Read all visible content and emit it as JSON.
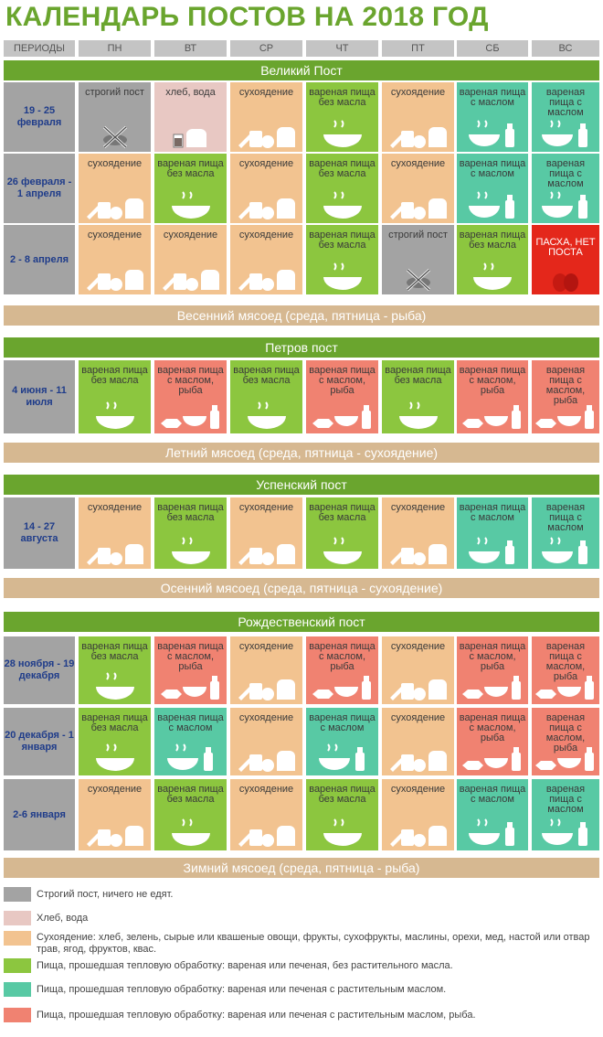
{
  "title": "КАЛЕНДАРЬ ПОСТОВ НА 2018 ГОД",
  "columns": [
    "ПЕРИОДЫ",
    "ПН",
    "ВТ",
    "СР",
    "ЧТ",
    "ПТ",
    "СБ",
    "ВС"
  ],
  "colors": {
    "strict": "#a3a3a3",
    "bread": "#e8c8c3",
    "dry": "#f2c390",
    "boiled_no_oil": "#8cc63f",
    "boiled_oil": "#58c9a4",
    "boiled_oil_fish": "#f08271",
    "easter": "#e4271b",
    "band": "#6aa52e",
    "meat_band": "#d6b891"
  },
  "labels": {
    "strict": "строгий пост",
    "bread": "хлеб, вода",
    "dry": "сухоядение",
    "boiled_no_oil": "вареная пища без масла",
    "boiled_oil": "вареная пища с маслом",
    "boiled_oil_fish": "вареная пища с маслом, рыба",
    "easter": "ПАСХА, НЕТ ПОСТА"
  },
  "sections": [
    {
      "name": "Великий Пост",
      "rows": [
        {
          "period": "19 - 25 февраля",
          "days": [
            "strict",
            "bread",
            "dry",
            "boiled_no_oil",
            "dry",
            "boiled_oil",
            "boiled_oil"
          ]
        },
        {
          "period": "26 февраля - 1 апреля",
          "days": [
            "dry",
            "boiled_no_oil",
            "dry",
            "boiled_no_oil",
            "dry",
            "boiled_oil",
            "boiled_oil"
          ]
        },
        {
          "period": "2 - 8 апреля",
          "days": [
            "dry",
            "dry",
            "dry",
            "boiled_no_oil",
            "strict",
            "boiled_no_oil",
            "easter"
          ]
        }
      ],
      "meat": "Весенний мясоед (среда, пятница - рыба)"
    },
    {
      "name": "Петров пост",
      "rows": [
        {
          "period": "4 июня - 11 июля",
          "days": [
            "boiled_no_oil",
            "boiled_oil_fish",
            "boiled_no_oil",
            "boiled_oil_fish",
            "boiled_no_oil",
            "boiled_oil_fish",
            "boiled_oil_fish"
          ]
        }
      ],
      "meat": "Летний мясоед (среда, пятница - сухоядение)"
    },
    {
      "name": "Успенский пост",
      "rows": [
        {
          "period": "14 - 27 августа",
          "days": [
            "dry",
            "boiled_no_oil",
            "dry",
            "boiled_no_oil",
            "dry",
            "boiled_oil",
            "boiled_oil"
          ]
        }
      ],
      "meat": "Осенний мясоед (среда, пятница - сухоядение)"
    },
    {
      "name": "Рождественский пост",
      "rows": [
        {
          "period": "28 ноября - 19 декабря",
          "days": [
            "boiled_no_oil",
            "boiled_oil_fish",
            "dry",
            "boiled_oil_fish",
            "dry",
            "boiled_oil_fish",
            "boiled_oil_fish"
          ]
        },
        {
          "period": "20 декабря - 1 января",
          "days": [
            "boiled_no_oil",
            "boiled_oil",
            "dry",
            "boiled_oil",
            "dry",
            "boiled_oil_fish",
            "boiled_oil_fish"
          ]
        },
        {
          "period": "2-6 января",
          "days": [
            "dry",
            "boiled_no_oil",
            "dry",
            "boiled_no_oil",
            "dry",
            "boiled_oil",
            "boiled_oil"
          ]
        }
      ],
      "meat": "Зимний мясоед (среда, пятница - рыба)"
    }
  ],
  "legend": [
    {
      "key": "strict",
      "text": "Строгий пост, ничего не едят."
    },
    {
      "key": "bread",
      "text": "Хлеб, вода"
    },
    {
      "key": "dry",
      "text": "Сухоядение: хлеб, зелень, сырые или квашеные овощи, фрукты, сухофрукты, маслины, орехи, мед, настой или отвар трав, ягод, фруктов, квас."
    },
    {
      "key": "boiled_no_oil",
      "text": "Пища, прошедшая тепловую обработку: вареная или печеная, без растительного масла."
    },
    {
      "key": "boiled_oil",
      "text": "Пища, прошедшая тепловую обработку: вареная или печеная с растительным маслом."
    },
    {
      "key": "boiled_oil_fish",
      "text": "Пища, прошедшая тепловую обработку: вареная или печеная с растительным маслом, рыба."
    }
  ]
}
